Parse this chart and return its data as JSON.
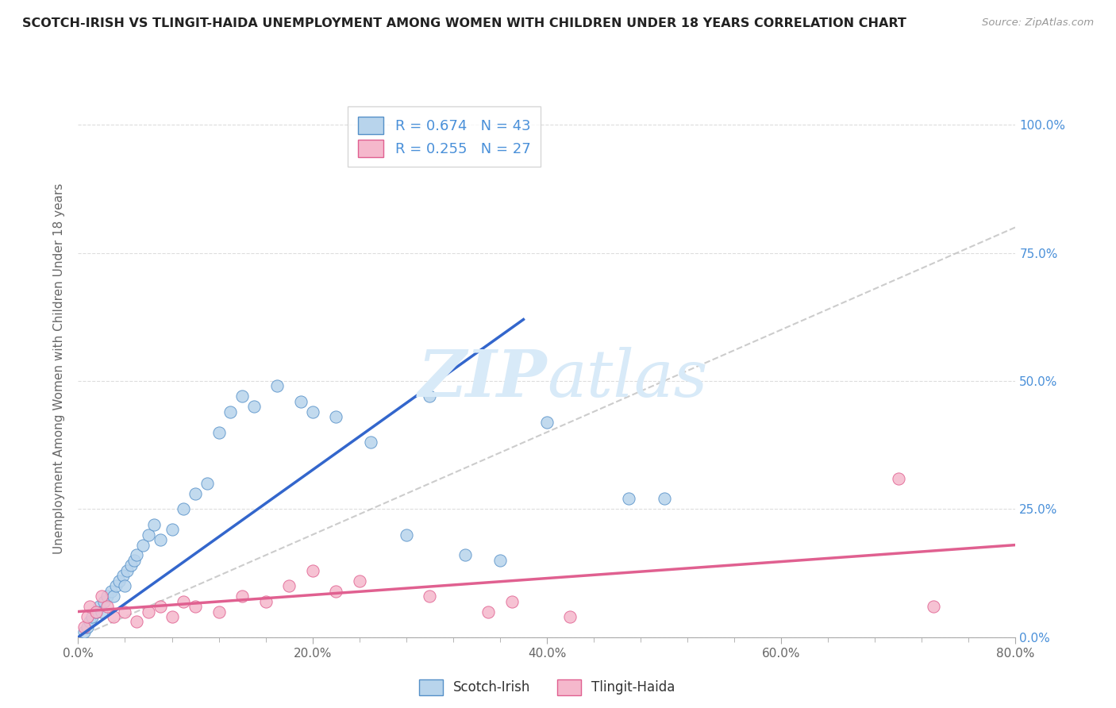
{
  "title": "SCOTCH-IRISH VS TLINGIT-HAIDA UNEMPLOYMENT AMONG WOMEN WITH CHILDREN UNDER 18 YEARS CORRELATION CHART",
  "source": "Source: ZipAtlas.com",
  "ylabel": "Unemployment Among Women with Children Under 18 years",
  "xlim": [
    0.0,
    0.8
  ],
  "ylim": [
    0.0,
    1.05
  ],
  "x_tick_vals": [
    0.0,
    0.2,
    0.4,
    0.6,
    0.8
  ],
  "x_tick_labels": [
    "0.0%",
    "20.0%",
    "40.0%",
    "60.0%",
    "80.0%"
  ],
  "y_tick_vals": [
    0.0,
    0.25,
    0.5,
    0.75,
    1.0
  ],
  "y_tick_labels": [
    "0.0%",
    "25.0%",
    "50.0%",
    "75.0%",
    "100.0%"
  ],
  "legend_labels": [
    "Scotch-Irish",
    "Tlingit-Haida"
  ],
  "scotch_irish_R": 0.674,
  "scotch_irish_N": 43,
  "tlingit_haida_R": 0.255,
  "tlingit_haida_N": 27,
  "scotch_irish_fill": "#b8d4ec",
  "scotch_irish_edge": "#5590c8",
  "tlingit_haida_fill": "#f5b8cc",
  "tlingit_haida_edge": "#e06090",
  "scotch_irish_line": "#3366cc",
  "tlingit_haida_line": "#e06090",
  "diagonal_color": "#c0c0c0",
  "watermark_color": "#d8eaf8",
  "background_color": "#ffffff",
  "grid_color": "#dddddd",
  "ytick_color": "#4a90d9",
  "xtick_color": "#666666",
  "title_color": "#222222",
  "source_color": "#999999",
  "ylabel_color": "#666666",
  "scotch_irish_x": [
    0.005,
    0.008,
    0.01,
    0.012,
    0.015,
    0.018,
    0.02,
    0.022,
    0.025,
    0.028,
    0.03,
    0.032,
    0.035,
    0.038,
    0.04,
    0.042,
    0.045,
    0.048,
    0.05,
    0.055,
    0.06,
    0.065,
    0.07,
    0.08,
    0.09,
    0.1,
    0.11,
    0.12,
    0.13,
    0.14,
    0.15,
    0.17,
    0.19,
    0.2,
    0.22,
    0.25,
    0.28,
    0.3,
    0.33,
    0.36,
    0.4,
    0.47,
    0.5
  ],
  "scotch_irish_y": [
    0.01,
    0.02,
    0.03,
    0.04,
    0.05,
    0.06,
    0.05,
    0.07,
    0.08,
    0.09,
    0.08,
    0.1,
    0.11,
    0.12,
    0.1,
    0.13,
    0.14,
    0.15,
    0.16,
    0.18,
    0.2,
    0.22,
    0.19,
    0.21,
    0.25,
    0.28,
    0.3,
    0.4,
    0.44,
    0.47,
    0.45,
    0.49,
    0.46,
    0.44,
    0.43,
    0.38,
    0.2,
    0.47,
    0.16,
    0.15,
    0.42,
    0.27,
    0.27
  ],
  "tlingit_haida_x": [
    0.005,
    0.008,
    0.01,
    0.015,
    0.02,
    0.025,
    0.03,
    0.04,
    0.05,
    0.06,
    0.07,
    0.08,
    0.09,
    0.1,
    0.12,
    0.14,
    0.16,
    0.18,
    0.2,
    0.22,
    0.24,
    0.3,
    0.35,
    0.37,
    0.42,
    0.7,
    0.73
  ],
  "tlingit_haida_y": [
    0.02,
    0.04,
    0.06,
    0.05,
    0.08,
    0.06,
    0.04,
    0.05,
    0.03,
    0.05,
    0.06,
    0.04,
    0.07,
    0.06,
    0.05,
    0.08,
    0.07,
    0.1,
    0.13,
    0.09,
    0.11,
    0.08,
    0.05,
    0.07,
    0.04,
    0.31,
    0.06
  ],
  "si_line_x": [
    0.0,
    0.38
  ],
  "si_line_y": [
    0.0,
    0.62
  ],
  "th_line_x": [
    0.0,
    0.8
  ],
  "th_line_y": [
    0.05,
    0.18
  ]
}
